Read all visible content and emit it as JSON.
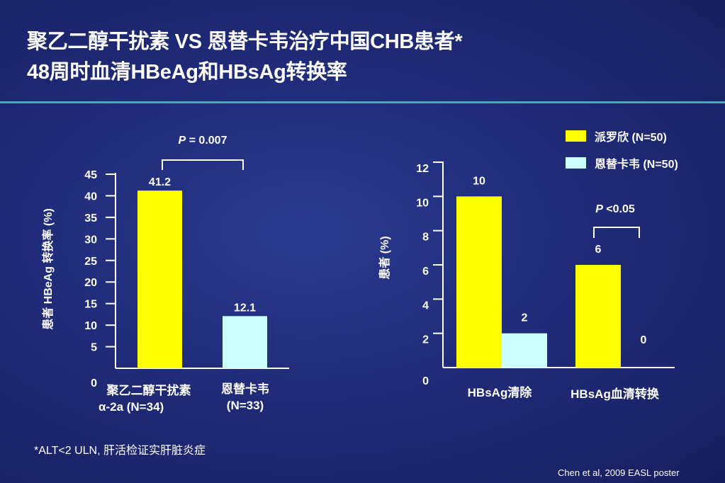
{
  "title_line1": "聚乙二醇干扰素 VS 恩替卡韦治疗中国CHB患者*",
  "title_line2": "48周时血清HBeAg和HBsAg转换率",
  "colors": {
    "peg": "#ffff00",
    "etv": "#ccffff",
    "background": "#202c7a",
    "rule": "#4fa6b8"
  },
  "legend": [
    {
      "label": "派罗欣 (N=50)",
      "color": "#ffff00"
    },
    {
      "label": "恩替卡韦 (N=50)",
      "color": "#ccffff"
    }
  ],
  "footnote": "*ALT<2 ULN, 肝活检证实肝脏炎症",
  "source": "Chen et al, 2009 EASL poster",
  "chart_data": [
    {
      "type": "bar",
      "ylabel": "患者 HBeAg 转换率 (%)",
      "ylim": [
        0,
        45
      ],
      "yticks": [
        "0",
        "5",
        "10",
        "15",
        "20",
        "25",
        "30",
        "35",
        "40",
        "45"
      ],
      "categories": [
        "聚乙二醇干扰素 α-2a (N=34)",
        "恩替卡韦 (N=33)"
      ],
      "category_labels": {
        "first_line1": "聚乙二醇干扰素",
        "first_line2": "α-2a (N=34)",
        "second_line1": "恩替卡韦",
        "second_line2": "(N=33)"
      },
      "values": [
        41.2,
        12.1
      ],
      "data_labels": [
        "41.2",
        "12.1"
      ],
      "annotation": {
        "prefix": "P",
        "text": " = 0.007"
      }
    },
    {
      "type": "bar",
      "ylabel": "患者 (%)",
      "ylim": [
        0,
        12
      ],
      "yticks": [
        "0",
        "2",
        "4",
        "6",
        "8",
        "10",
        "12"
      ],
      "categories": [
        "HBsAg清除",
        "HBsAg血清转换"
      ],
      "series": [
        {
          "name": "派罗欣 (N=50)",
          "values": [
            10,
            6
          ],
          "data_labels": [
            "10",
            "6"
          ]
        },
        {
          "name": "恩替卡韦 (N=50)",
          "values": [
            2,
            0
          ],
          "data_labels": [
            "2",
            "0"
          ]
        }
      ],
      "annotation": {
        "prefix": "P",
        "text": " <0.05"
      }
    }
  ]
}
